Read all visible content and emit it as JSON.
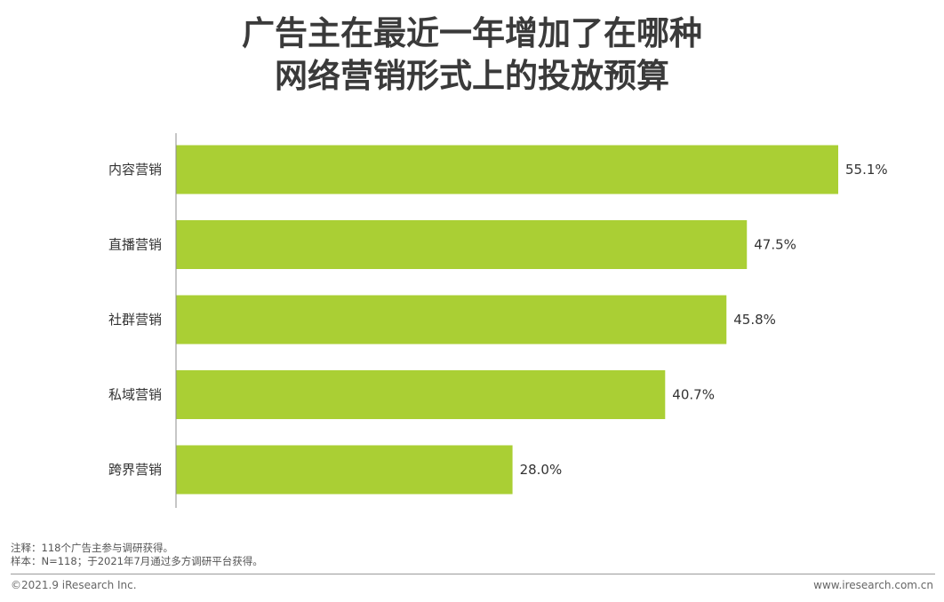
{
  "chart_data": {
    "type": "bar",
    "orientation": "horizontal",
    "title": "广告主在最近一年增加了在哪种网络营销形式上的投放预算",
    "title_lines": [
      "广告主在最近一年增加了在哪种",
      "网络营销形式上的投放预算"
    ],
    "categories": [
      "内容营销",
      "直播营销",
      "社群营销",
      "私域营销",
      "跨界营销"
    ],
    "values": [
      55.1,
      47.5,
      45.8,
      40.7,
      28.0
    ],
    "value_labels": [
      "55.1%",
      "47.5%",
      "45.8%",
      "40.7%",
      "28.0%"
    ],
    "unit": "%",
    "xlim": [
      0,
      60
    ],
    "grid": false,
    "legend": "none",
    "bar_color": "#aacf34"
  },
  "notes": {
    "note": "注释：118个广告主参与调研获得。",
    "sample": "样本：N=118；于2021年7月通过多方调研平台获得。"
  },
  "footer": {
    "copyright": "©2021.9 iResearch Inc.",
    "website": "www.iresearch.com.cn"
  }
}
